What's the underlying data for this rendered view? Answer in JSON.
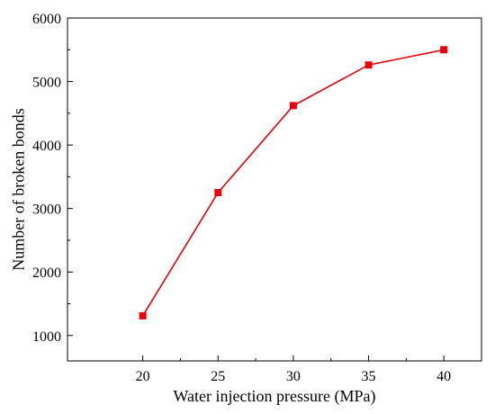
{
  "chart_data": {
    "type": "line",
    "title": "",
    "xlabel": "Water injection pressure (MPa)",
    "ylabel": "Number of broken bonds",
    "xlim": [
      15,
      42.5
    ],
    "ylim": [
      600,
      6000
    ],
    "xticks": [
      20,
      25,
      30,
      35,
      40
    ],
    "yticks": [
      1000,
      2000,
      3000,
      4000,
      5000,
      6000
    ],
    "xtick_labels": [
      "20",
      "25",
      "30",
      "35",
      "40"
    ],
    "ytick_labels": [
      "1000",
      "2000",
      "3000",
      "4000",
      "5000",
      "6000"
    ],
    "grid": false,
    "legend": "none",
    "series": [
      {
        "color": "#e8000b",
        "marker": "square",
        "x": [
          20,
          25,
          30,
          35,
          40
        ],
        "y": [
          1310,
          3250,
          4620,
          5260,
          5500
        ]
      }
    ]
  }
}
